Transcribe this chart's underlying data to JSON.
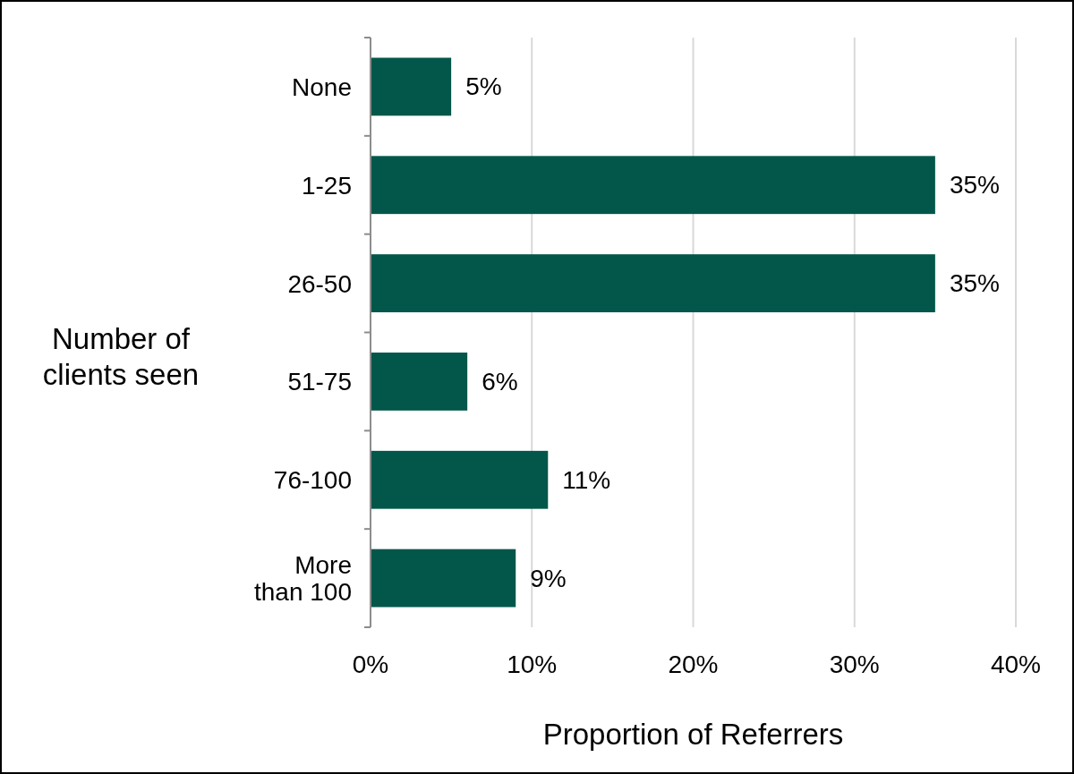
{
  "chart_data": {
    "type": "bar",
    "orientation": "horizontal",
    "categories": [
      "None",
      "1-25",
      "26-50",
      "51-75",
      "76-100",
      "More\nthan 100"
    ],
    "values": [
      5,
      35,
      35,
      6,
      11,
      9
    ],
    "value_labels": [
      "5%",
      "35%",
      "35%",
      "6%",
      "11%",
      "9%"
    ],
    "color": "#03574a",
    "xlabel": "Proportion of Referrers",
    "ylabel": "Number of\nclients seen",
    "xlim": [
      0,
      40
    ],
    "xticks": [
      {
        "value": 0,
        "label": "0%"
      },
      {
        "value": 10,
        "label": "10%"
      },
      {
        "value": 20,
        "label": "20%"
      },
      {
        "value": 30,
        "label": "30%"
      },
      {
        "value": 40,
        "label": "40%"
      }
    ],
    "grid": "x"
  }
}
